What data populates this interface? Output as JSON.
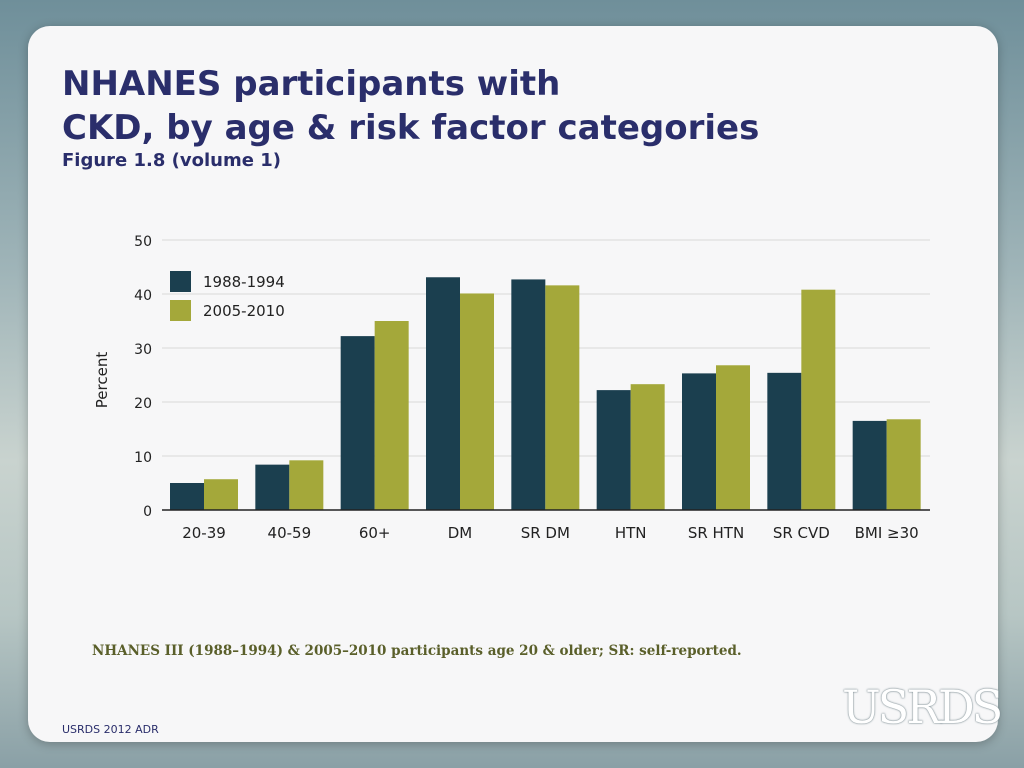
{
  "slide": {
    "title_line1": "NHANES participants with",
    "title_line2": "CKD, by age & risk factor categories",
    "subtitle": "Figure 1.8 (volume 1)",
    "footnote": "NHANES III (1988–1994) & 2005–2010 participants age 20 & older; SR: self-reported.",
    "footer_left": "USRDS 2012 ADR",
    "logo_text": "USRDS"
  },
  "chart_data": {
    "type": "bar",
    "title": "",
    "xlabel": "",
    "ylabel": "Percent",
    "ylim": [
      0,
      50
    ],
    "yticks": [
      0,
      10,
      20,
      30,
      40,
      50
    ],
    "grid": true,
    "legend_position": "top-left",
    "categories": [
      "20-39",
      "40-59",
      "60+",
      "DM",
      "SR DM",
      "HTN",
      "SR HTN",
      "SR CVD",
      "BMI ≥30"
    ],
    "series": [
      {
        "name": "1988-1994",
        "color": "#1b3f4f",
        "values": [
          5.0,
          8.4,
          32.2,
          43.1,
          42.7,
          22.2,
          25.3,
          25.4,
          16.5
        ]
      },
      {
        "name": "2005-2010",
        "color": "#a4a83a",
        "values": [
          5.7,
          9.2,
          35.0,
          40.1,
          41.6,
          23.3,
          26.8,
          40.8,
          16.8
        ]
      }
    ]
  }
}
